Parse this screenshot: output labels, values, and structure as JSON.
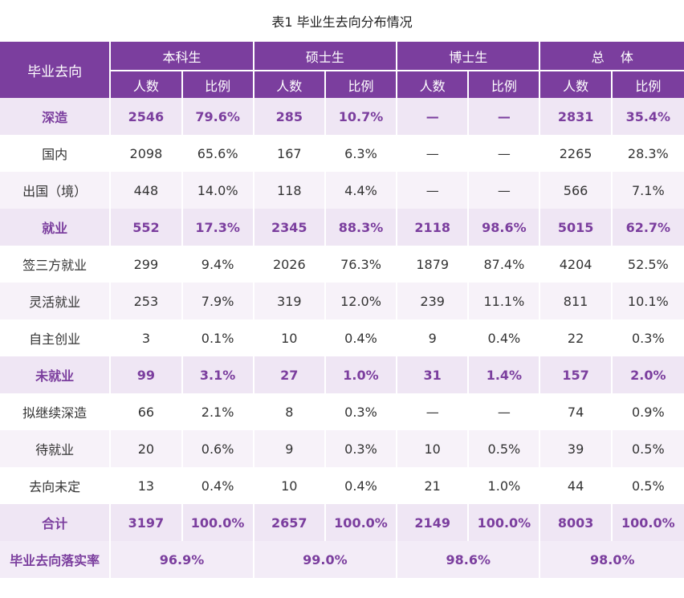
{
  "title": "表1  毕业生去向分布情况",
  "header": {
    "row_label": "毕业去向",
    "groups": [
      "本科生",
      "硕士生",
      "博士生",
      "总    体"
    ],
    "sub_labels": [
      "人数",
      "比例"
    ]
  },
  "rows": [
    {
      "label": "深造",
      "kind": "cat",
      "values": [
        "2546",
        "79.6%",
        "285",
        "10.7%",
        "—",
        "—",
        "2831",
        "35.4%"
      ]
    },
    {
      "label": "国内",
      "kind": "sub",
      "values": [
        "2098",
        "65.6%",
        "167",
        "6.3%",
        "—",
        "—",
        "2265",
        "28.3%"
      ]
    },
    {
      "label": "出国（境）",
      "kind": "sub",
      "values": [
        "448",
        "14.0%",
        "118",
        "4.4%",
        "—",
        "—",
        "566",
        "7.1%"
      ]
    },
    {
      "label": "就业",
      "kind": "cat",
      "values": [
        "552",
        "17.3%",
        "2345",
        "88.3%",
        "2118",
        "98.6%",
        "5015",
        "62.7%"
      ]
    },
    {
      "label": "签三方就业",
      "kind": "sub",
      "values": [
        "299",
        "9.4%",
        "2026",
        "76.3%",
        "1879",
        "87.4%",
        "4204",
        "52.5%"
      ]
    },
    {
      "label": "灵活就业",
      "kind": "sub",
      "values": [
        "253",
        "7.9%",
        "319",
        "12.0%",
        "239",
        "11.1%",
        "811",
        "10.1%"
      ]
    },
    {
      "label": "自主创业",
      "kind": "sub",
      "values": [
        "3",
        "0.1%",
        "10",
        "0.4%",
        "9",
        "0.4%",
        "22",
        "0.3%"
      ]
    },
    {
      "label": "未就业",
      "kind": "cat",
      "values": [
        "99",
        "3.1%",
        "27",
        "1.0%",
        "31",
        "1.4%",
        "157",
        "2.0%"
      ]
    },
    {
      "label": "拟继续深造",
      "kind": "sub",
      "values": [
        "66",
        "2.1%",
        "8",
        "0.3%",
        "—",
        "—",
        "74",
        "0.9%"
      ]
    },
    {
      "label": "待就业",
      "kind": "sub",
      "values": [
        "20",
        "0.6%",
        "9",
        "0.3%",
        "10",
        "0.5%",
        "39",
        "0.5%"
      ]
    },
    {
      "label": "去向未定",
      "kind": "sub",
      "values": [
        "13",
        "0.4%",
        "10",
        "0.4%",
        "21",
        "1.0%",
        "44",
        "0.5%"
      ]
    },
    {
      "label": "合计",
      "kind": "cat",
      "values": [
        "3197",
        "100.0%",
        "2657",
        "100.0%",
        "2149",
        "100.0%",
        "8003",
        "100.0%"
      ]
    }
  ],
  "rate_row": {
    "label": "毕业去向落实率",
    "values": [
      "96.9%",
      "99.0%",
      "98.6%",
      "98.0%"
    ]
  },
  "colors": {
    "accent": "#7b3e9e",
    "cat_bg": "#efe6f4",
    "alt_bg": "#f7f2f9"
  }
}
